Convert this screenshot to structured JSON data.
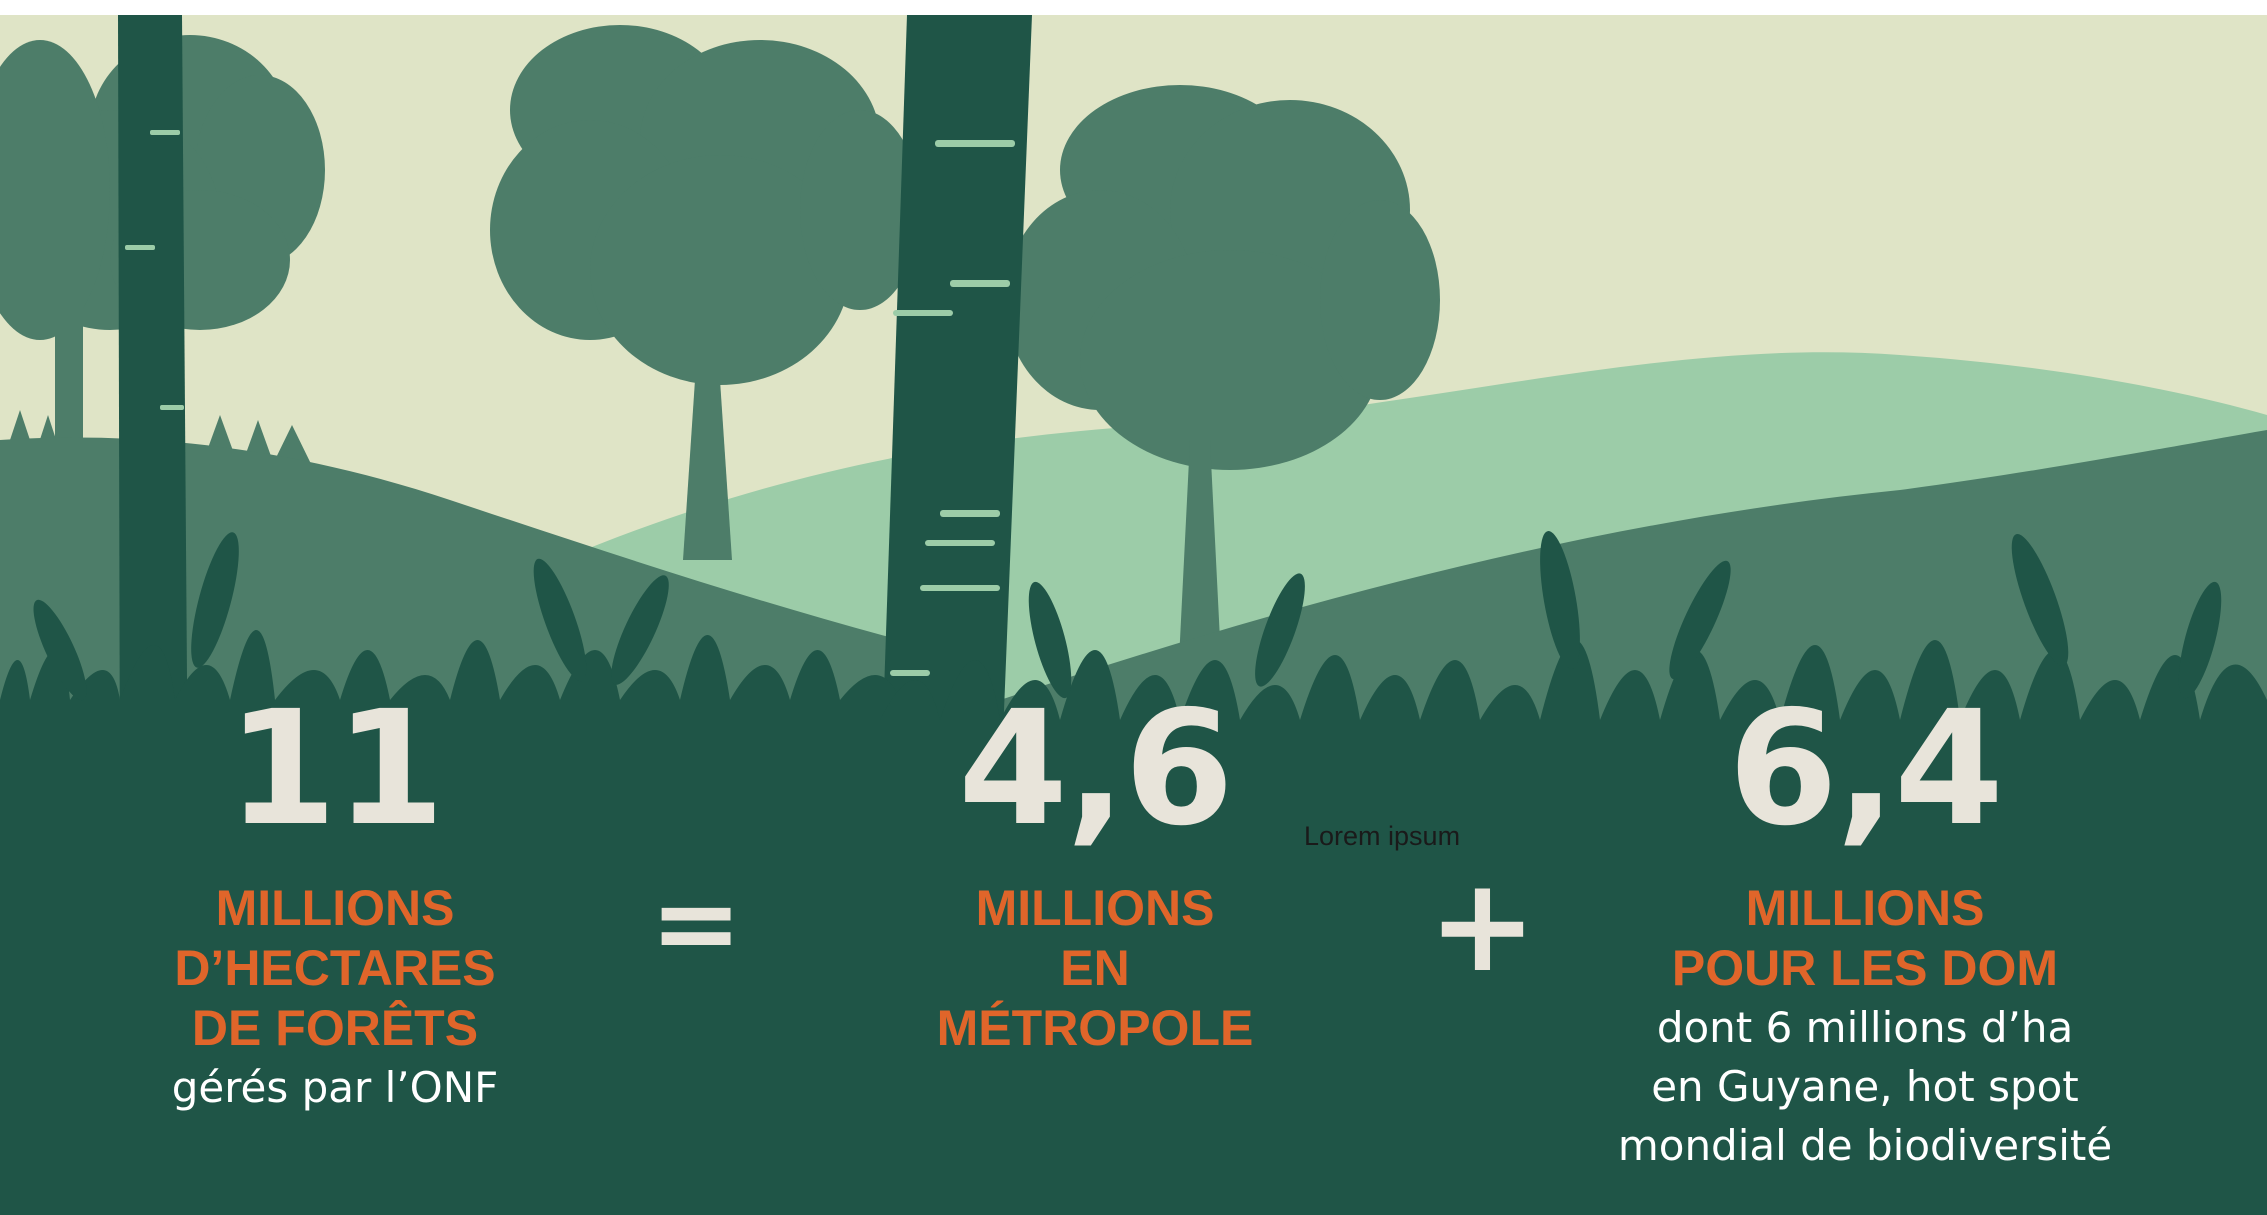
{
  "stat_total": {
    "number": "11",
    "line1": "MILLIONS",
    "line2": "D’HECTARES",
    "line3": "DE FORÊTS",
    "note": "gérés par l’ONF"
  },
  "operator_equals": "=",
  "stat_metropole": {
    "number": "4,6",
    "line1": "MILLIONS",
    "line2": "EN",
    "line3": "MÉTROPOLE"
  },
  "placeholder_text": "Lorem ipsum",
  "operator_plus": "+",
  "stat_dom": {
    "number": "6,4",
    "line1": "MILLIONS",
    "line2": "POUR LES DOM",
    "note1": "dont 6 millions d’ha",
    "note2": "en Guyane, hot spot",
    "note3": "mondial de biodiversité"
  },
  "colors": {
    "sky": "#dfe4c6",
    "dark_green": "#1f5547",
    "mid_green": "#4d7d69",
    "light_green": "#9ccca8",
    "number_color": "#e8e4da",
    "accent_orange": "#e0652a"
  }
}
